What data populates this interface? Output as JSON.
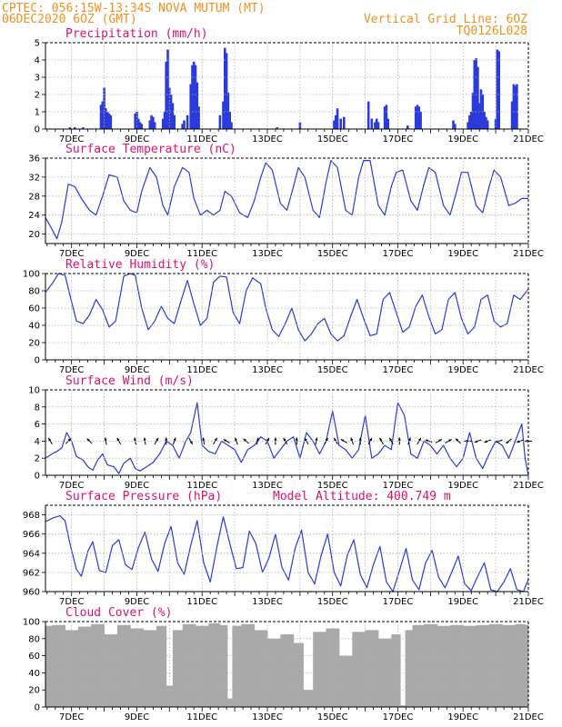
{
  "header": {
    "line1": "CPTEC:  056:15W-13:34S  NOVA MUTUM (MT)",
    "line2": "06DEC2020 6OZ (GMT)",
    "grid_note": "Vertical Grid Line: 6OZ",
    "code": "TQ0126L028"
  },
  "colors": {
    "header": "#f0901e",
    "panel_title": "#e0106e",
    "series": "#2b3bdb",
    "cloud": "#a9a9a9",
    "grid": "#b0b0b0"
  },
  "x_axis": {
    "range_days": [
      6.2,
      21.0
    ],
    "tick_labels": [
      "7DEC",
      "9DEC",
      "11DEC",
      "13DEC",
      "15DEC",
      "17DEC",
      "19DEC",
      "21DEC"
    ],
    "tick_days": [
      7,
      9,
      11,
      13,
      15,
      17,
      19,
      21
    ]
  },
  "chart_data": [
    {
      "type": "bar",
      "title": "Precipitation (mm/h)",
      "ylim": [
        0,
        5
      ],
      "yticks": [
        0,
        1,
        2,
        3,
        4,
        5
      ],
      "x": [
        6.95,
        7.1,
        7.35,
        7.9,
        7.95,
        8.0,
        8.05,
        8.1,
        8.15,
        8.2,
        8.95,
        9.0,
        9.05,
        9.1,
        9.15,
        9.4,
        9.45,
        9.5,
        9.55,
        9.8,
        9.85,
        9.9,
        9.95,
        10.0,
        10.05,
        10.1,
        10.15,
        10.4,
        10.45,
        10.55,
        10.65,
        10.7,
        10.75,
        10.8,
        10.85,
        10.9,
        11.55,
        11.65,
        11.7,
        11.75,
        11.8,
        11.85,
        11.9,
        13.3,
        14.0,
        15.05,
        15.1,
        15.15,
        15.25,
        15.35,
        16.1,
        16.2,
        16.3,
        16.35,
        16.4,
        16.6,
        16.65,
        16.7,
        17.3,
        17.55,
        17.6,
        17.65,
        17.7,
        18.7,
        18.75,
        19.15,
        19.2,
        19.25,
        19.3,
        19.35,
        19.4,
        19.45,
        19.5,
        19.55,
        19.6,
        19.65,
        19.7,
        19.75,
        20.0,
        20.05,
        20.1,
        20.5,
        20.55,
        20.6,
        20.65
      ],
      "values": [
        0.1,
        0.1,
        0.1,
        1.4,
        1.6,
        2.4,
        1.2,
        1.0,
        0.9,
        0.8,
        0.9,
        1.0,
        0.6,
        0.4,
        0.3,
        0.5,
        0.8,
        0.7,
        0.4,
        0.6,
        1.0,
        3.9,
        4.6,
        2.4,
        2.0,
        1.5,
        0.8,
        0.3,
        0.5,
        0.8,
        2.6,
        3.7,
        3.9,
        3.7,
        2.7,
        1.3,
        0.8,
        1.6,
        4.7,
        4.4,
        2.1,
        1.0,
        0.4,
        0.1,
        0.4,
        0.5,
        0.8,
        1.2,
        0.6,
        0.7,
        1.6,
        0.6,
        0.4,
        0.6,
        0.4,
        1.3,
        1.4,
        0.6,
        0.2,
        1.3,
        1.4,
        1.3,
        1.0,
        0.5,
        0.3,
        0.4,
        0.8,
        1.0,
        2.1,
        4.0,
        4.1,
        3.6,
        1.5,
        2.3,
        2.0,
        1.0,
        0.7,
        0.5,
        0.6,
        4.6,
        4.5,
        1.6,
        2.6,
        2.5,
        2.6
      ]
    },
    {
      "type": "line",
      "title": "Surface Temperature (nC)",
      "ylim": [
        18,
        36
      ],
      "yticks": [
        20,
        24,
        28,
        32,
        36
      ],
      "x": [
        6.2,
        6.4,
        6.55,
        6.7,
        6.9,
        7.1,
        7.3,
        7.55,
        7.75,
        7.95,
        8.15,
        8.4,
        8.6,
        8.8,
        9.0,
        9.15,
        9.4,
        9.6,
        9.8,
        9.95,
        10.15,
        10.4,
        10.6,
        10.75,
        10.95,
        11.15,
        11.35,
        11.55,
        11.7,
        11.9,
        12.15,
        12.4,
        12.6,
        12.8,
        12.95,
        13.15,
        13.4,
        13.6,
        13.8,
        13.95,
        14.15,
        14.4,
        14.6,
        14.8,
        14.95,
        15.15,
        15.4,
        15.6,
        15.8,
        15.95,
        16.15,
        16.4,
        16.6,
        16.8,
        16.95,
        17.15,
        17.4,
        17.6,
        17.8,
        17.95,
        18.15,
        18.4,
        18.6,
        18.8,
        18.95,
        19.15,
        19.4,
        19.6,
        19.8,
        19.95,
        20.15,
        20.4,
        20.6,
        20.8,
        21.0
      ],
      "values": [
        23.5,
        21.0,
        19.0,
        22.5,
        30.5,
        30.0,
        27.5,
        25.0,
        24.0,
        28.0,
        32.5,
        32.0,
        27.0,
        25.0,
        24.5,
        29.0,
        34.0,
        32.0,
        26.0,
        24.0,
        30.0,
        34.0,
        33.0,
        27.5,
        24.0,
        25.0,
        24.0,
        25.0,
        29.0,
        28.0,
        24.5,
        23.5,
        27.0,
        32.0,
        35.0,
        33.5,
        26.5,
        25.0,
        30.0,
        34.0,
        32.0,
        25.0,
        23.5,
        31.0,
        35.5,
        34.0,
        25.0,
        24.0,
        32.0,
        35.5,
        35.5,
        26.0,
        24.0,
        30.0,
        33.0,
        33.5,
        27.0,
        25.0,
        30.5,
        34.0,
        33.0,
        26.0,
        24.0,
        29.0,
        33.0,
        33.0,
        26.0,
        24.5,
        30.0,
        33.5,
        32.0,
        26.0,
        26.5,
        27.5,
        27.5
      ]
    },
    {
      "type": "line",
      "title": "Relative Humidity (%)",
      "ylim": [
        0,
        100
      ],
      "yticks": [
        0,
        20,
        40,
        60,
        80,
        100
      ],
      "x": [
        6.2,
        6.4,
        6.6,
        6.8,
        6.95,
        7.15,
        7.35,
        7.55,
        7.75,
        7.95,
        8.15,
        8.35,
        8.6,
        8.8,
        8.95,
        9.15,
        9.35,
        9.55,
        9.75,
        9.95,
        10.15,
        10.35,
        10.55,
        10.75,
        10.95,
        11.15,
        11.35,
        11.55,
        11.75,
        11.95,
        12.15,
        12.35,
        12.55,
        12.8,
        12.95,
        13.15,
        13.35,
        13.55,
        13.75,
        13.95,
        14.15,
        14.35,
        14.55,
        14.75,
        14.95,
        15.15,
        15.35,
        15.55,
        15.75,
        15.95,
        16.15,
        16.35,
        16.55,
        16.75,
        16.95,
        17.15,
        17.35,
        17.55,
        17.75,
        17.95,
        18.15,
        18.35,
        18.55,
        18.75,
        18.95,
        19.15,
        19.35,
        19.55,
        19.75,
        19.95,
        20.15,
        20.35,
        20.55,
        20.75,
        21.0
      ],
      "values": [
        78.0,
        88.0,
        100.0,
        98.0,
        75.0,
        45.0,
        42.0,
        52.0,
        70.0,
        58.0,
        38.0,
        45.0,
        97.0,
        100.0,
        98.0,
        60.0,
        35.0,
        45.0,
        62.0,
        48.0,
        42.0,
        68.0,
        92.0,
        65.0,
        40.0,
        48.0,
        90.0,
        97.0,
        96.0,
        55.0,
        42.0,
        80.0,
        95.0,
        88.0,
        60.0,
        35.0,
        27.0,
        42.0,
        60.0,
        35.0,
        22.0,
        30.0,
        42.0,
        48.0,
        30.0,
        22.0,
        28.0,
        50.0,
        70.0,
        48.0,
        28.0,
        30.0,
        70.0,
        78.0,
        55.0,
        32.0,
        38.0,
        62.0,
        75.0,
        50.0,
        30.0,
        35.0,
        70.0,
        78.0,
        48.0,
        30.0,
        38.0,
        70.0,
        75.0,
        45.0,
        38.0,
        42.0,
        75.0,
        70.0,
        82.0
      ]
    },
    {
      "type": "line",
      "title": "Surface Wind (m/s)",
      "ylim": [
        0,
        10
      ],
      "yticks": [
        0,
        2,
        4,
        6,
        8,
        10
      ],
      "x": [
        6.2,
        6.4,
        6.55,
        6.7,
        6.85,
        7.0,
        7.15,
        7.35,
        7.5,
        7.65,
        7.8,
        7.95,
        8.1,
        8.3,
        8.45,
        8.6,
        8.8,
        8.95,
        9.1,
        9.3,
        9.5,
        9.7,
        9.9,
        10.1,
        10.3,
        10.5,
        10.65,
        10.85,
        11.0,
        11.2,
        11.4,
        11.6,
        11.8,
        12.0,
        12.2,
        12.4,
        12.6,
        12.8,
        13.0,
        13.2,
        13.4,
        13.6,
        13.8,
        14.0,
        14.2,
        14.4,
        14.6,
        14.8,
        15.0,
        15.2,
        15.4,
        15.6,
        15.8,
        16.0,
        16.2,
        16.4,
        16.6,
        16.8,
        17.0,
        17.2,
        17.4,
        17.6,
        17.8,
        18.0,
        18.2,
        18.4,
        18.6,
        18.8,
        19.0,
        19.2,
        19.4,
        19.6,
        19.8,
        20.0,
        20.2,
        20.4,
        20.6,
        20.8,
        20.9,
        21.0
      ],
      "values": [
        2.0,
        2.5,
        2.8,
        3.2,
        5.0,
        4.0,
        2.2,
        1.8,
        1.0,
        0.6,
        1.8,
        2.5,
        1.2,
        1.0,
        0.2,
        1.4,
        2.0,
        0.8,
        0.5,
        1.0,
        1.5,
        2.5,
        4.0,
        3.5,
        2.0,
        4.0,
        5.0,
        8.5,
        3.5,
        2.8,
        2.5,
        4.0,
        3.5,
        3.0,
        1.5,
        3.0,
        3.5,
        4.5,
        4.0,
        2.0,
        3.0,
        4.0,
        4.5,
        2.0,
        5.0,
        4.0,
        2.5,
        4.0,
        7.5,
        3.5,
        3.0,
        2.0,
        3.0,
        7.0,
        2.0,
        2.5,
        3.5,
        3.0,
        8.5,
        7.0,
        2.5,
        2.0,
        4.0,
        3.5,
        2.5,
        3.5,
        2.0,
        1.0,
        2.0,
        5.0,
        2.0,
        0.8,
        2.5,
        4.0,
        3.5,
        2.0,
        4.0,
        6.0,
        2.0,
        0.0
      ],
      "arrows_x": [
        6.35,
        6.9,
        7.55,
        8.05,
        8.45,
        8.95,
        9.25,
        9.6,
        9.9,
        10.15,
        10.65,
        11.05,
        11.4,
        11.75,
        12.05,
        12.35,
        12.7,
        13.0,
        13.25,
        13.55,
        13.9,
        14.2,
        14.5,
        14.8,
        15.1,
        15.35,
        15.6,
        15.85,
        16.15,
        16.5,
        16.8,
        17.05,
        17.35,
        17.65,
        17.95,
        18.25,
        18.55,
        18.85,
        19.15,
        19.45,
        19.75,
        20.1,
        20.4,
        20.75,
        21.0
      ],
      "arrows_deg": [
        120,
        45,
        135,
        100,
        120,
        100,
        100,
        60,
        90,
        70,
        300,
        100,
        60,
        150,
        110,
        140,
        80,
        60,
        90,
        120,
        90,
        120,
        80,
        60,
        120,
        150,
        110,
        90,
        60,
        120,
        120,
        90,
        70,
        60,
        160,
        30,
        30,
        135,
        180,
        200,
        200,
        200,
        220,
        200,
        180
      ]
    },
    {
      "type": "line",
      "title": "Surface Pressure (hPa)",
      "annotation": "Model Altitude: 400.749 m",
      "ylim": [
        960,
        969
      ],
      "yticks": [
        960,
        962,
        964,
        966,
        968
      ],
      "x": [
        6.2,
        6.45,
        6.65,
        6.8,
        6.95,
        7.15,
        7.3,
        7.5,
        7.65,
        7.85,
        8.05,
        8.25,
        8.45,
        8.65,
        8.85,
        9.05,
        9.25,
        9.45,
        9.65,
        9.85,
        10.05,
        10.25,
        10.45,
        10.65,
        10.85,
        11.05,
        11.25,
        11.45,
        11.65,
        11.85,
        12.05,
        12.25,
        12.45,
        12.65,
        12.85,
        13.05,
        13.25,
        13.45,
        13.65,
        13.85,
        14.05,
        14.25,
        14.45,
        14.65,
        14.85,
        15.05,
        15.25,
        15.45,
        15.65,
        15.85,
        16.05,
        16.25,
        16.45,
        16.65,
        16.85,
        17.05,
        17.25,
        17.45,
        17.65,
        17.85,
        18.05,
        18.25,
        18.45,
        18.65,
        18.85,
        19.05,
        19.25,
        19.45,
        19.65,
        19.85,
        20.05,
        20.25,
        20.45,
        20.65,
        20.85,
        21.0
      ],
      "values": [
        967.3,
        967.7,
        967.9,
        967.4,
        965.0,
        962.3,
        961.6,
        964.2,
        965.2,
        962.2,
        962.0,
        964.8,
        965.4,
        962.8,
        962.3,
        964.6,
        966.2,
        963.4,
        962.1,
        965.0,
        966.8,
        963.0,
        961.8,
        964.8,
        967.4,
        963.0,
        961.0,
        964.6,
        967.8,
        965.0,
        962.4,
        962.5,
        966.3,
        965.0,
        962.0,
        963.5,
        966.0,
        962.5,
        961.2,
        964.5,
        966.4,
        962.0,
        960.8,
        963.8,
        966.0,
        962.0,
        960.6,
        963.8,
        965.4,
        961.8,
        960.4,
        962.8,
        964.7,
        961.0,
        960.0,
        962.2,
        964.5,
        961.2,
        960.2,
        963.0,
        964.3,
        961.5,
        960.4,
        962.0,
        963.7,
        960.8,
        960.1,
        961.6,
        963.0,
        960.2,
        959.8,
        961.0,
        962.4,
        960.2,
        959.6,
        961.3
      ]
    },
    {
      "type": "area",
      "title": "Cloud Cover (%)",
      "ylim": [
        0,
        100
      ],
      "yticks": [
        0,
        20,
        40,
        60,
        80,
        100
      ],
      "x": [
        6.2,
        6.6,
        7.0,
        7.4,
        7.8,
        8.2,
        8.6,
        9.0,
        9.4,
        9.8,
        10.0,
        10.2,
        10.6,
        11.0,
        11.4,
        11.7,
        11.85,
        12.0,
        12.4,
        12.8,
        13.2,
        13.6,
        14.0,
        14.2,
        14.6,
        15.0,
        15.4,
        15.8,
        16.2,
        16.6,
        17.0,
        17.15,
        17.3,
        17.6,
        18.0,
        18.4,
        18.8,
        19.2,
        19.6,
        20.0,
        20.4,
        20.8,
        21.0
      ],
      "values": [
        95.0,
        96.0,
        90.0,
        94.0,
        97.0,
        85.0,
        96.0,
        92.0,
        90.0,
        95.0,
        25.0,
        90.0,
        97.0,
        95.0,
        98.0,
        96.0,
        10.0,
        95.0,
        97.0,
        90.0,
        80.0,
        85.0,
        75.0,
        20.0,
        88.0,
        92.0,
        60.0,
        88.0,
        90.0,
        80.0,
        85.0,
        2.0,
        90.0,
        96.0,
        97.0,
        95.0,
        96.0,
        95.0,
        96.0,
        97.0,
        96.0,
        97.0,
        96.0
      ]
    }
  ]
}
